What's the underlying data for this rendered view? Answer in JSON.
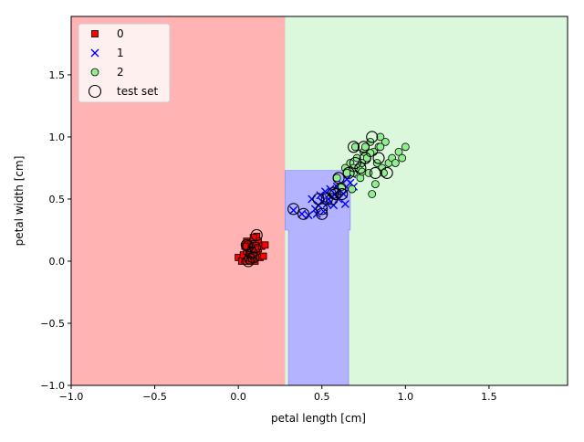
{
  "chart_data": {
    "type": "scatter",
    "title": "",
    "xlabel": "petal length [cm]",
    "ylabel": "petal width [cm]",
    "xlim": [
      -1.0,
      1.97
    ],
    "ylim": [
      -1.0,
      1.97
    ],
    "x_ticks": [
      -1.0,
      -0.5,
      0.0,
      0.5,
      1.0,
      1.5
    ],
    "y_ticks": [
      -1.0,
      -0.5,
      0.0,
      0.5,
      1.0,
      1.5
    ],
    "x_tick_labels": [
      "−1.0",
      "−0.5",
      "0.0",
      "0.5",
      "1.0",
      "1.5"
    ],
    "y_tick_labels": [
      "−1.0",
      "−0.5",
      "0.0",
      "0.5",
      "1.0",
      "1.5"
    ],
    "grid": false,
    "legend_position": "top-left",
    "legend": [
      {
        "label": "0",
        "marker": "square",
        "color": "#ff0000"
      },
      {
        "label": "1",
        "marker": "x",
        "color": "#0000ff"
      },
      {
        "label": "2",
        "marker": "circle",
        "color": "#90ee90"
      },
      {
        "label": "test set",
        "marker": "open-circle",
        "color": "#000000"
      }
    ],
    "decision_regions": [
      {
        "class": "0",
        "color": "#ffb3b3",
        "boundary_x": 0.28,
        "description": "x < 0.28"
      },
      {
        "class": "1",
        "color": "#b3b3ff",
        "x_range": [
          0.28,
          0.67
        ],
        "y_upper": 0.73,
        "inner_x_range": [
          0.3,
          0.66
        ],
        "step_y": 0.25
      },
      {
        "class": "2",
        "color": "#dbf7dc"
      }
    ],
    "series": [
      {
        "name": "0",
        "marker": "square",
        "color": "#ff0000",
        "points": [
          [
            0.0,
            0.03
          ],
          [
            0.02,
            0.0
          ],
          [
            0.03,
            0.05
          ],
          [
            0.04,
            0.0
          ],
          [
            0.05,
            0.08
          ],
          [
            0.06,
            0.03
          ],
          [
            0.06,
            0.12
          ],
          [
            0.07,
            0.0
          ],
          [
            0.07,
            0.06
          ],
          [
            0.08,
            0.1
          ],
          [
            0.08,
            0.02
          ],
          [
            0.09,
            0.04
          ],
          [
            0.09,
            0.13
          ],
          [
            0.1,
            0.0
          ],
          [
            0.1,
            0.08
          ],
          [
            0.11,
            0.2
          ],
          [
            0.11,
            0.05
          ],
          [
            0.12,
            0.1
          ],
          [
            0.12,
            0.16
          ],
          [
            0.13,
            0.03
          ],
          [
            0.14,
            0.12
          ],
          [
            0.15,
            0.04
          ],
          [
            0.16,
            0.13
          ],
          [
            0.05,
            0.16
          ],
          [
            0.04,
            0.12
          ],
          [
            0.09,
            0.19
          ]
        ]
      },
      {
        "name": "1",
        "marker": "x",
        "color": "#0000ff",
        "points": [
          [
            0.33,
            0.41
          ],
          [
            0.38,
            0.38
          ],
          [
            0.42,
            0.37
          ],
          [
            0.44,
            0.5
          ],
          [
            0.46,
            0.42
          ],
          [
            0.47,
            0.38
          ],
          [
            0.48,
            0.45
          ],
          [
            0.49,
            0.53
          ],
          [
            0.5,
            0.48
          ],
          [
            0.51,
            0.4
          ],
          [
            0.52,
            0.56
          ],
          [
            0.53,
            0.46
          ],
          [
            0.54,
            0.5
          ],
          [
            0.55,
            0.58
          ],
          [
            0.56,
            0.52
          ],
          [
            0.57,
            0.45
          ],
          [
            0.58,
            0.54
          ],
          [
            0.59,
            0.6
          ],
          [
            0.6,
            0.5
          ],
          [
            0.61,
            0.57
          ],
          [
            0.62,
            0.62
          ],
          [
            0.63,
            0.54
          ],
          [
            0.64,
            0.46
          ],
          [
            0.65,
            0.66
          ],
          [
            0.66,
            0.58
          ],
          [
            0.67,
            0.63
          ],
          [
            0.68,
            0.7
          ],
          [
            0.69,
            0.6
          ]
        ]
      },
      {
        "name": "2",
        "marker": "circle",
        "color": "#90ee90",
        "points": [
          [
            0.59,
            0.67
          ],
          [
            0.62,
            0.6
          ],
          [
            0.64,
            0.75
          ],
          [
            0.65,
            0.71
          ],
          [
            0.67,
            0.79
          ],
          [
            0.68,
            0.58
          ],
          [
            0.69,
            0.71
          ],
          [
            0.7,
            0.92
          ],
          [
            0.71,
            0.83
          ],
          [
            0.72,
            0.75
          ],
          [
            0.73,
            0.67
          ],
          [
            0.74,
            0.79
          ],
          [
            0.75,
            0.88
          ],
          [
            0.76,
            0.92
          ],
          [
            0.77,
            0.83
          ],
          [
            0.78,
            0.71
          ],
          [
            0.79,
            0.96
          ],
          [
            0.8,
            0.54
          ],
          [
            0.81,
            0.88
          ],
          [
            0.82,
            0.62
          ],
          [
            0.83,
            0.79
          ],
          [
            0.84,
            0.92
          ],
          [
            0.85,
            1.0
          ],
          [
            0.86,
            0.75
          ],
          [
            0.87,
            0.71
          ],
          [
            0.88,
            0.96
          ],
          [
            0.9,
            0.79
          ],
          [
            0.92,
            0.83
          ],
          [
            0.94,
            0.79
          ],
          [
            0.96,
            0.88
          ],
          [
            0.98,
            0.83
          ],
          [
            1.0,
            0.92
          ],
          [
            0.74,
            0.72
          ],
          [
            0.79,
            0.87
          ],
          [
            0.69,
            0.75
          ],
          [
            0.85,
            0.92
          ]
        ]
      },
      {
        "name": "test set",
        "marker": "open-circle",
        "color": "#000000",
        "points": [
          [
            0.06,
            0.0
          ],
          [
            0.07,
            0.02
          ],
          [
            0.08,
            0.07
          ],
          [
            0.06,
            0.12
          ],
          [
            0.1,
            0.11
          ],
          [
            0.11,
            0.21
          ],
          [
            0.05,
            0.13
          ],
          [
            0.09,
            0.03
          ],
          [
            0.33,
            0.42
          ],
          [
            0.39,
            0.38
          ],
          [
            0.5,
            0.38
          ],
          [
            0.5,
            0.42
          ],
          [
            0.53,
            0.5
          ],
          [
            0.56,
            0.5
          ],
          [
            0.58,
            0.54
          ],
          [
            0.6,
            0.67
          ],
          [
            0.62,
            0.54
          ],
          [
            0.61,
            0.58
          ],
          [
            0.66,
            0.71
          ],
          [
            0.69,
            0.92
          ],
          [
            0.7,
            0.79
          ],
          [
            0.73,
            0.75
          ],
          [
            0.75,
            0.92
          ],
          [
            0.8,
            1.0
          ],
          [
            0.82,
            0.71
          ],
          [
            0.84,
            0.83
          ],
          [
            0.89,
            0.71
          ],
          [
            0.76,
            0.83
          ],
          [
            0.57,
            0.55
          ],
          [
            0.48,
            0.5
          ]
        ]
      }
    ]
  }
}
